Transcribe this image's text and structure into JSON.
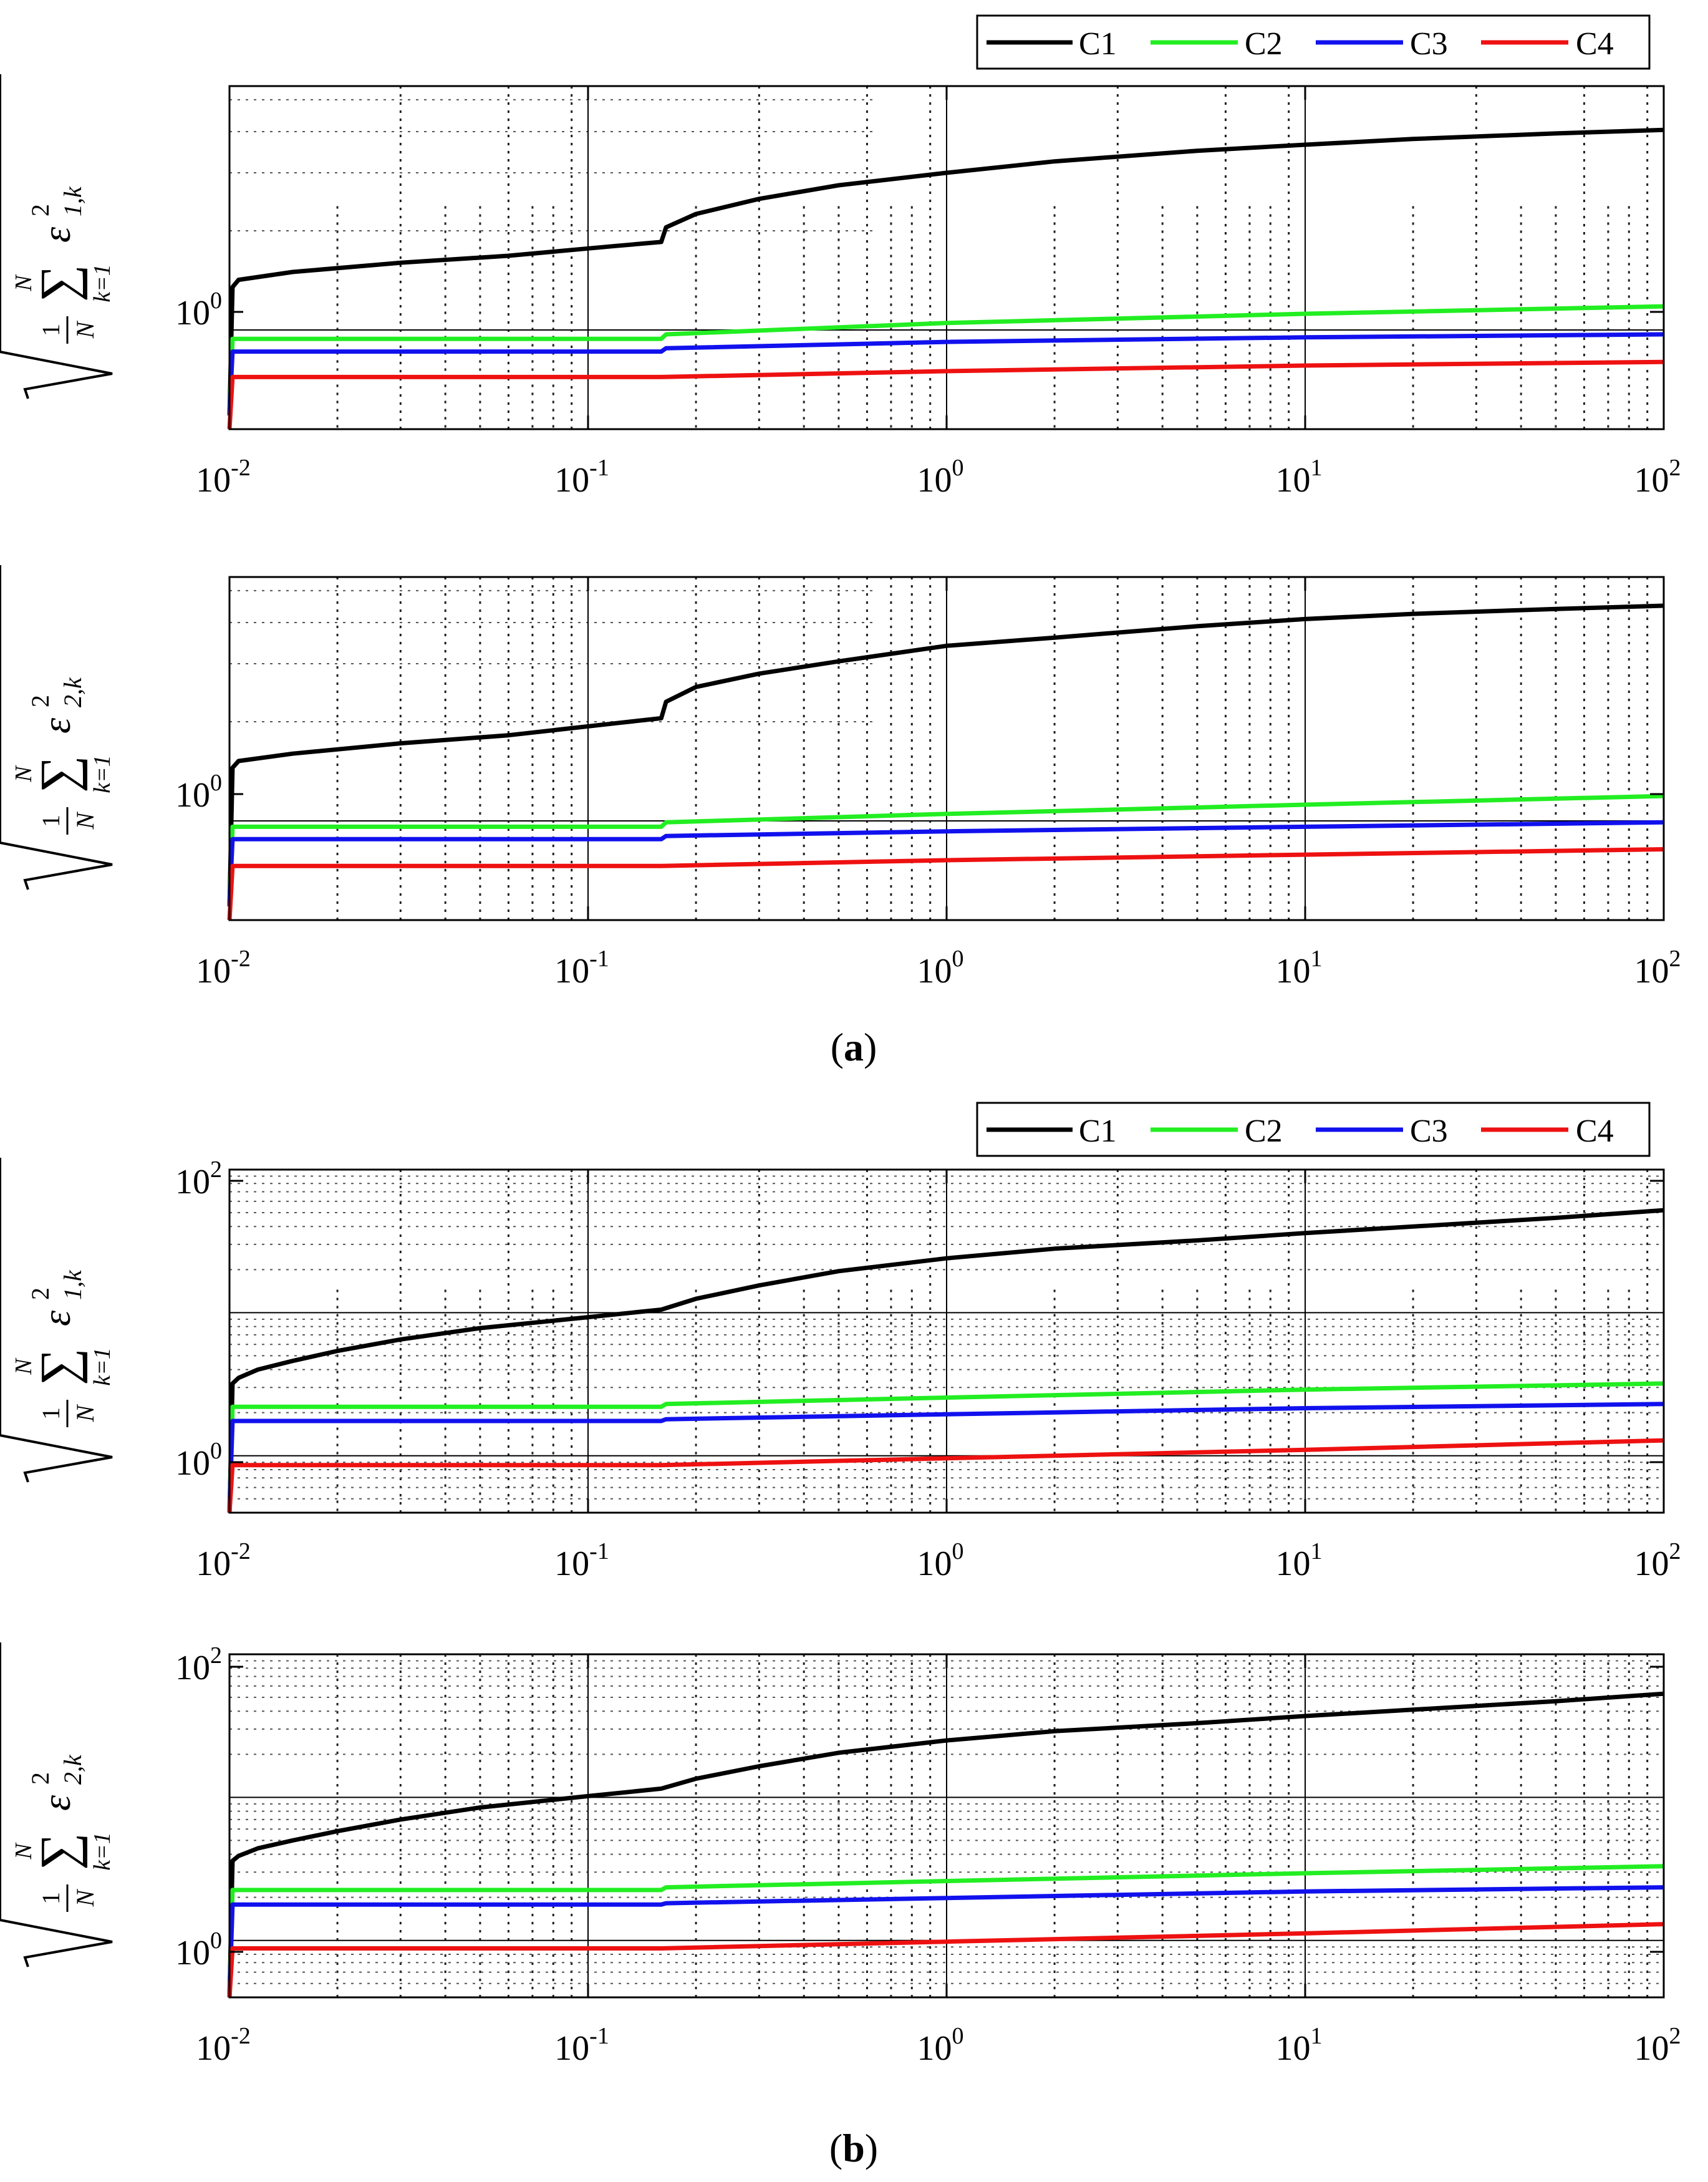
{
  "figure": {
    "panel_labels": [
      {
        "open": "(",
        "letter": "a",
        "close": ")"
      },
      {
        "open": "(",
        "letter": "b",
        "close": ")"
      }
    ]
  },
  "legend": {
    "entries": [
      {
        "label": "C1",
        "color": "#000000"
      },
      {
        "label": "C2",
        "color": "#22ee22"
      },
      {
        "label": "C3",
        "color": "#1111ee"
      },
      {
        "label": "C4",
        "color": "#ee1111"
      }
    ]
  },
  "chart_data": [
    {
      "id": "a1",
      "type": "line",
      "xscale": "log",
      "yscale": "log",
      "xlim": [
        0.01,
        100
      ],
      "ylim": [
        0.5,
        5.5
      ],
      "xticks": [
        {
          "base": "10",
          "exp": "-2"
        },
        {
          "base": "10",
          "exp": "-1"
        },
        {
          "base": "10",
          "exp": "0"
        },
        {
          "base": "10",
          "exp": "1"
        },
        {
          "base": "10",
          "exp": "2"
        }
      ],
      "yticks": [
        {
          "base": "10",
          "exp": "0"
        }
      ],
      "ylabel": {
        "frac_num": "1",
        "frac_den": "N",
        "sum_top": "N",
        "sum_bottom": "k=1",
        "symbol": "ε",
        "sup": "2",
        "sub": "1,k"
      },
      "series": [
        {
          "name": "C1",
          "x": [
            0.01,
            0.0102,
            0.0106,
            0.015,
            0.03,
            0.06,
            0.12,
            0.16,
            0.165,
            0.2,
            0.3,
            0.5,
            1,
            2,
            5,
            10,
            20,
            50,
            100
          ],
          "y": [
            0.55,
            1.35,
            1.42,
            1.5,
            1.6,
            1.68,
            1.8,
            1.85,
            2.05,
            2.25,
            2.5,
            2.75,
            3.0,
            3.25,
            3.5,
            3.65,
            3.8,
            3.95,
            4.05
          ]
        },
        {
          "name": "C2",
          "x": [
            0.01,
            0.0102,
            0.16,
            0.165,
            1,
            10,
            100
          ],
          "y": [
            0.55,
            0.94,
            0.94,
            0.97,
            1.05,
            1.12,
            1.18
          ]
        },
        {
          "name": "C3",
          "x": [
            0.01,
            0.0102,
            0.16,
            0.165,
            1,
            10,
            100
          ],
          "y": [
            0.55,
            0.86,
            0.86,
            0.88,
            0.92,
            0.95,
            0.97
          ]
        },
        {
          "name": "C4",
          "x": [
            0.01,
            0.0102,
            0.16,
            1,
            10,
            100
          ],
          "y": [
            0.5,
            0.72,
            0.72,
            0.75,
            0.78,
            0.8
          ]
        }
      ]
    },
    {
      "id": "a2",
      "type": "line",
      "xscale": "log",
      "yscale": "log",
      "xlim": [
        0.01,
        100
      ],
      "ylim": [
        0.5,
        5.5
      ],
      "xticks": [
        {
          "base": "10",
          "exp": "-2"
        },
        {
          "base": "10",
          "exp": "-1"
        },
        {
          "base": "10",
          "exp": "0"
        },
        {
          "base": "10",
          "exp": "1"
        },
        {
          "base": "10",
          "exp": "2"
        }
      ],
      "yticks": [
        {
          "base": "10",
          "exp": "0"
        }
      ],
      "ylabel": {
        "frac_num": "1",
        "frac_den": "N",
        "sum_top": "N",
        "sum_bottom": "k=1",
        "symbol": "ε",
        "sup": "2",
        "sub": "2,k"
      },
      "series": [
        {
          "name": "C1",
          "x": [
            0.01,
            0.0102,
            0.0106,
            0.015,
            0.03,
            0.06,
            0.12,
            0.16,
            0.165,
            0.2,
            0.3,
            0.5,
            1,
            2,
            5,
            10,
            20,
            50,
            100
          ],
          "y": [
            0.55,
            1.45,
            1.52,
            1.6,
            1.72,
            1.82,
            1.98,
            2.05,
            2.3,
            2.55,
            2.8,
            3.05,
            3.4,
            3.6,
            3.9,
            4.1,
            4.25,
            4.4,
            4.5
          ]
        },
        {
          "name": "C2",
          "x": [
            0.01,
            0.0102,
            0.16,
            0.165,
            1,
            10,
            100
          ],
          "y": [
            0.55,
            0.96,
            0.96,
            0.99,
            1.05,
            1.12,
            1.19
          ]
        },
        {
          "name": "C3",
          "x": [
            0.01,
            0.0102,
            0.16,
            0.165,
            1,
            10,
            100
          ],
          "y": [
            0.55,
            0.88,
            0.88,
            0.9,
            0.93,
            0.96,
            0.99
          ]
        },
        {
          "name": "C4",
          "x": [
            0.01,
            0.0102,
            0.16,
            1,
            10,
            100
          ],
          "y": [
            0.5,
            0.73,
            0.73,
            0.76,
            0.79,
            0.82
          ]
        }
      ]
    },
    {
      "id": "b1",
      "type": "line",
      "xscale": "log",
      "yscale": "log",
      "xlim": [
        0.01,
        100
      ],
      "ylim": [
        0.4,
        100
      ],
      "xticks": [
        {
          "base": "10",
          "exp": "-2"
        },
        {
          "base": "10",
          "exp": "-1"
        },
        {
          "base": "10",
          "exp": "0"
        },
        {
          "base": "10",
          "exp": "1"
        },
        {
          "base": "10",
          "exp": "2"
        }
      ],
      "yticks": [
        {
          "base": "10",
          "exp": "2"
        },
        {
          "base": "10",
          "exp": "0"
        }
      ],
      "ylabel": {
        "frac_num": "1",
        "frac_den": "N",
        "sum_top": "N",
        "sum_bottom": "k=1",
        "symbol": "ε",
        "sup": "2",
        "sub": "1,k"
      },
      "series": [
        {
          "name": "C1",
          "x": [
            0.01,
            0.0102,
            0.0106,
            0.012,
            0.015,
            0.02,
            0.03,
            0.05,
            0.1,
            0.16,
            0.2,
            0.3,
            0.5,
            1,
            2,
            5,
            10,
            20,
            50,
            100
          ],
          "y": [
            0.4,
            3.2,
            3.5,
            4.0,
            4.6,
            5.4,
            6.5,
            7.8,
            9.3,
            10.5,
            12.5,
            15.5,
            19.5,
            24,
            28,
            32,
            36,
            40,
            46,
            52
          ]
        },
        {
          "name": "C2",
          "x": [
            0.01,
            0.0102,
            0.16,
            0.165,
            1,
            10,
            100
          ],
          "y": [
            0.4,
            2.2,
            2.2,
            2.3,
            2.55,
            2.9,
            3.2
          ]
        },
        {
          "name": "C3",
          "x": [
            0.01,
            0.0102,
            0.16,
            0.165,
            1,
            10,
            100
          ],
          "y": [
            0.4,
            1.75,
            1.75,
            1.8,
            1.95,
            2.15,
            2.3
          ]
        },
        {
          "name": "C4",
          "x": [
            0.01,
            0.0102,
            0.16,
            1,
            10,
            100
          ],
          "y": [
            0.4,
            0.86,
            0.86,
            0.96,
            1.1,
            1.28
          ]
        }
      ]
    },
    {
      "id": "b2",
      "type": "line",
      "xscale": "log",
      "yscale": "log",
      "xlim": [
        0.01,
        100
      ],
      "ylim": [
        0.4,
        100
      ],
      "xticks": [
        {
          "base": "10",
          "exp": "-2"
        },
        {
          "base": "10",
          "exp": "-1"
        },
        {
          "base": "10",
          "exp": "0"
        },
        {
          "base": "10",
          "exp": "1"
        },
        {
          "base": "10",
          "exp": "2"
        }
      ],
      "yticks": [
        {
          "base": "10",
          "exp": "2"
        },
        {
          "base": "10",
          "exp": "0"
        }
      ],
      "ylabel": {
        "frac_num": "1",
        "frac_den": "N",
        "sum_top": "N",
        "sum_bottom": "k=1",
        "symbol": "ε",
        "sup": "2",
        "sub": "2,k"
      },
      "series": [
        {
          "name": "C1",
          "x": [
            0.01,
            0.0102,
            0.0106,
            0.012,
            0.015,
            0.02,
            0.03,
            0.05,
            0.1,
            0.16,
            0.2,
            0.3,
            0.5,
            1,
            2,
            5,
            10,
            20,
            50,
            100
          ],
          "y": [
            0.4,
            3.6,
            3.9,
            4.4,
            5.0,
            5.8,
            7.0,
            8.5,
            10.2,
            11.5,
            13.5,
            16.5,
            20.5,
            25,
            29,
            33,
            37,
            41,
            47,
            53
          ]
        },
        {
          "name": "C2",
          "x": [
            0.01,
            0.0102,
            0.16,
            0.165,
            1,
            10,
            100
          ],
          "y": [
            0.4,
            2.25,
            2.25,
            2.35,
            2.6,
            2.95,
            3.3
          ]
        },
        {
          "name": "C3",
          "x": [
            0.01,
            0.0102,
            0.16,
            0.165,
            1,
            10,
            100
          ],
          "y": [
            0.4,
            1.78,
            1.78,
            1.82,
            1.98,
            2.2,
            2.35
          ]
        },
        {
          "name": "C4",
          "x": [
            0.01,
            0.0102,
            0.16,
            1,
            10,
            100
          ],
          "y": [
            0.4,
            0.88,
            0.88,
            0.98,
            1.12,
            1.3
          ]
        }
      ]
    }
  ]
}
